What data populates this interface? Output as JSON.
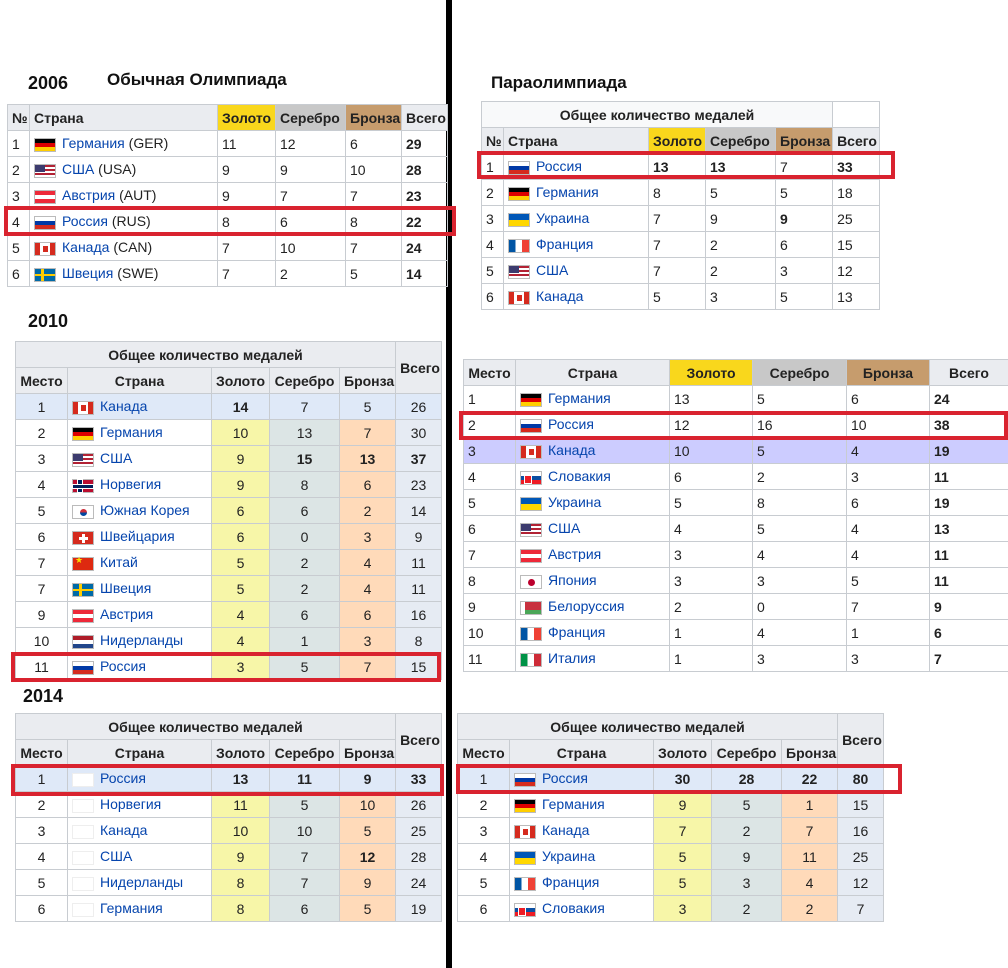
{
  "titles": {
    "year2006": "2006",
    "olympics": "Обычная Олимпиада",
    "paralympics": "Параолимпиада",
    "year2010": "2010",
    "year2014": "2014"
  },
  "headers": {
    "num": "№",
    "place": "Место",
    "country": "Страна",
    "gold": "Золото",
    "silver": "Серебро",
    "bronze": "Бронза",
    "total": "Всего",
    "overall": "Общее количество медалей"
  },
  "t2006": {
    "rows": [
      {
        "n": "1",
        "flag": "ger",
        "country": "Германия",
        "code": "(GER)",
        "g": "11",
        "s": "12",
        "b": "6",
        "t": "29"
      },
      {
        "n": "2",
        "flag": "usa",
        "country": "США",
        "code": "(USA)",
        "g": "9",
        "s": "9",
        "b": "10",
        "t": "28"
      },
      {
        "n": "3",
        "flag": "aut",
        "country": "Австрия",
        "code": "(AUT)",
        "g": "9",
        "s": "7",
        "b": "7",
        "t": "23"
      },
      {
        "n": "4",
        "flag": "rus",
        "country": "Россия",
        "code": "(RUS)",
        "g": "8",
        "s": "6",
        "b": "8",
        "t": "22"
      },
      {
        "n": "5",
        "flag": "can",
        "country": "Канада",
        "code": "(CAN)",
        "g": "7",
        "s": "10",
        "b": "7",
        "t": "24"
      },
      {
        "n": "6",
        "flag": "swe",
        "country": "Швеция",
        "code": "(SWE)",
        "g": "7",
        "s": "2",
        "b": "5",
        "t": "14"
      }
    ]
  },
  "p2006": {
    "rows": [
      {
        "n": "1",
        "flag": "rus",
        "country": "Россия",
        "g": "13",
        "s": "13",
        "b": "7",
        "t": "33"
      },
      {
        "n": "2",
        "flag": "ger",
        "country": "Германия",
        "g": "8",
        "s": "5",
        "b": "5",
        "t": "18"
      },
      {
        "n": "3",
        "flag": "ukr",
        "country": "Украина",
        "g": "7",
        "s": "9",
        "b": "9",
        "t": "25"
      },
      {
        "n": "4",
        "flag": "fra",
        "country": "Франция",
        "g": "7",
        "s": "2",
        "b": "6",
        "t": "15"
      },
      {
        "n": "5",
        "flag": "usa",
        "country": "США",
        "g": "7",
        "s": "2",
        "b": "3",
        "t": "12"
      },
      {
        "n": "6",
        "flag": "can",
        "country": "Канада",
        "g": "5",
        "s": "3",
        "b": "5",
        "t": "13"
      }
    ]
  },
  "t2010": {
    "rows": [
      {
        "n": "1",
        "flag": "can",
        "country": "Канада",
        "g": "14",
        "s": "7",
        "b": "5",
        "t": "26"
      },
      {
        "n": "2",
        "flag": "ger",
        "country": "Германия",
        "g": "10",
        "s": "13",
        "b": "7",
        "t": "30"
      },
      {
        "n": "3",
        "flag": "usa",
        "country": "США",
        "g": "9",
        "s": "15",
        "b": "13",
        "t": "37"
      },
      {
        "n": "4",
        "flag": "nor",
        "country": "Норвегия",
        "g": "9",
        "s": "8",
        "b": "6",
        "t": "23"
      },
      {
        "n": "5",
        "flag": "kor",
        "country": "Южная Корея",
        "g": "6",
        "s": "6",
        "b": "2",
        "t": "14"
      },
      {
        "n": "6",
        "flag": "sui",
        "country": "Швейцария",
        "g": "6",
        "s": "0",
        "b": "3",
        "t": "9"
      },
      {
        "n": "7",
        "flag": "chn",
        "country": "Китай",
        "g": "5",
        "s": "2",
        "b": "4",
        "t": "11"
      },
      {
        "n": "7",
        "flag": "swe",
        "country": "Швеция",
        "g": "5",
        "s": "2",
        "b": "4",
        "t": "11"
      },
      {
        "n": "9",
        "flag": "aut",
        "country": "Австрия",
        "g": "4",
        "s": "6",
        "b": "6",
        "t": "16"
      },
      {
        "n": "10",
        "flag": "ned",
        "country": "Нидерланды",
        "g": "4",
        "s": "1",
        "b": "3",
        "t": "8"
      },
      {
        "n": "11",
        "flag": "rus",
        "country": "Россия",
        "g": "3",
        "s": "5",
        "b": "7",
        "t": "15"
      }
    ]
  },
  "p2010": {
    "rows": [
      {
        "n": "1",
        "flag": "ger",
        "country": "Германия",
        "g": "13",
        "s": "5",
        "b": "6",
        "t": "24"
      },
      {
        "n": "2",
        "flag": "rus",
        "country": "Россия",
        "g": "12",
        "s": "16",
        "b": "10",
        "t": "38"
      },
      {
        "n": "3",
        "flag": "can",
        "country": "Канада",
        "g": "10",
        "s": "5",
        "b": "4",
        "t": "19"
      },
      {
        "n": "4",
        "flag": "svk",
        "country": "Словакия",
        "g": "6",
        "s": "2",
        "b": "3",
        "t": "11"
      },
      {
        "n": "5",
        "flag": "ukr",
        "country": "Украина",
        "g": "5",
        "s": "8",
        "b": "6",
        "t": "19"
      },
      {
        "n": "6",
        "flag": "usa",
        "country": "США",
        "g": "4",
        "s": "5",
        "b": "4",
        "t": "13"
      },
      {
        "n": "7",
        "flag": "aut",
        "country": "Австрия",
        "g": "3",
        "s": "4",
        "b": "4",
        "t": "11"
      },
      {
        "n": "8",
        "flag": "jpn",
        "country": "Япония",
        "g": "3",
        "s": "3",
        "b": "5",
        "t": "11"
      },
      {
        "n": "9",
        "flag": "blr",
        "country": "Белоруссия",
        "g": "2",
        "s": "0",
        "b": "7",
        "t": "9"
      },
      {
        "n": "10",
        "flag": "fra",
        "country": "Франция",
        "g": "1",
        "s": "4",
        "b": "1",
        "t": "6"
      },
      {
        "n": "11",
        "flag": "ita",
        "country": "Италия",
        "g": "1",
        "s": "3",
        "b": "3",
        "t": "7"
      }
    ]
  },
  "t2014": {
    "rows": [
      {
        "n": "1",
        "flag": "none",
        "country": "Россия",
        "g": "13",
        "s": "11",
        "b": "9",
        "t": "33"
      },
      {
        "n": "2",
        "flag": "none",
        "country": "Норвегия",
        "g": "11",
        "s": "5",
        "b": "10",
        "t": "26"
      },
      {
        "n": "3",
        "flag": "none",
        "country": "Канада",
        "g": "10",
        "s": "10",
        "b": "5",
        "t": "25"
      },
      {
        "n": "4",
        "flag": "none",
        "country": "США",
        "g": "9",
        "s": "7",
        "b": "12",
        "t": "28"
      },
      {
        "n": "5",
        "flag": "none",
        "country": "Нидерланды",
        "g": "8",
        "s": "7",
        "b": "9",
        "t": "24"
      },
      {
        "n": "6",
        "flag": "none",
        "country": "Германия",
        "g": "8",
        "s": "6",
        "b": "5",
        "t": "19"
      }
    ]
  },
  "p2014": {
    "rows": [
      {
        "n": "1",
        "flag": "rus",
        "country": "Россия",
        "g": "30",
        "s": "28",
        "b": "22",
        "t": "80"
      },
      {
        "n": "2",
        "flag": "ger",
        "country": "Германия",
        "g": "9",
        "s": "5",
        "b": "1",
        "t": "15"
      },
      {
        "n": "3",
        "flag": "can",
        "country": "Канада",
        "g": "7",
        "s": "2",
        "b": "7",
        "t": "16"
      },
      {
        "n": "4",
        "flag": "ukr",
        "country": "Украина",
        "g": "5",
        "s": "9",
        "b": "11",
        "t": "25"
      },
      {
        "n": "5",
        "flag": "fra",
        "country": "Франция",
        "g": "5",
        "s": "3",
        "b": "4",
        "t": "12"
      },
      {
        "n": "6",
        "flag": "svk",
        "country": "Словакия",
        "g": "3",
        "s": "2",
        "b": "2",
        "t": "7"
      }
    ]
  }
}
